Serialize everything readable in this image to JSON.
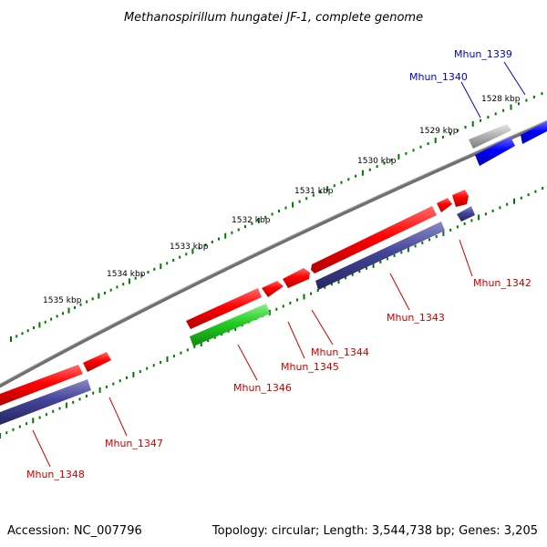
{
  "header": {
    "title": "Methanospirillum hungatei JF-1, complete genome"
  },
  "footer": {
    "accession": "Accession: NC_007796",
    "summary": "Topology: circular; Length: 3,544,738 bp; Genes: 3,205"
  },
  "scale": {
    "tick_labels": [
      "1528 kbp",
      "1529 kbp",
      "1530 kbp",
      "1531 kbp",
      "1532 kbp",
      "1533 kbp",
      "1534 kbp",
      "1535 kbp"
    ]
  },
  "genes": [
    {
      "name": "Mhun_1339",
      "color": "#0000cc"
    },
    {
      "name": "Mhun_1340",
      "color": "#0000cc"
    },
    {
      "name": "Mhun_1342",
      "color": "#cc0000"
    },
    {
      "name": "Mhun_1343",
      "color": "#cc0000"
    },
    {
      "name": "Mhun_1344",
      "color": "#cc0000"
    },
    {
      "name": "Mhun_1345",
      "color": "#cc0000"
    },
    {
      "name": "Mhun_1346",
      "color": "#cc0000"
    },
    {
      "name": "Mhun_1347",
      "color": "#cc0000"
    },
    {
      "name": "Mhun_1348",
      "color": "#cc0000"
    }
  ],
  "colors": {
    "cds_red": "#ff0000",
    "cds_blue": "#0000ff",
    "cds_navy": "#3f3f8f",
    "cds_green": "#22cc22",
    "cds_gray": "#aaaaaa",
    "backbone": "#808080",
    "tick": "#007700"
  }
}
